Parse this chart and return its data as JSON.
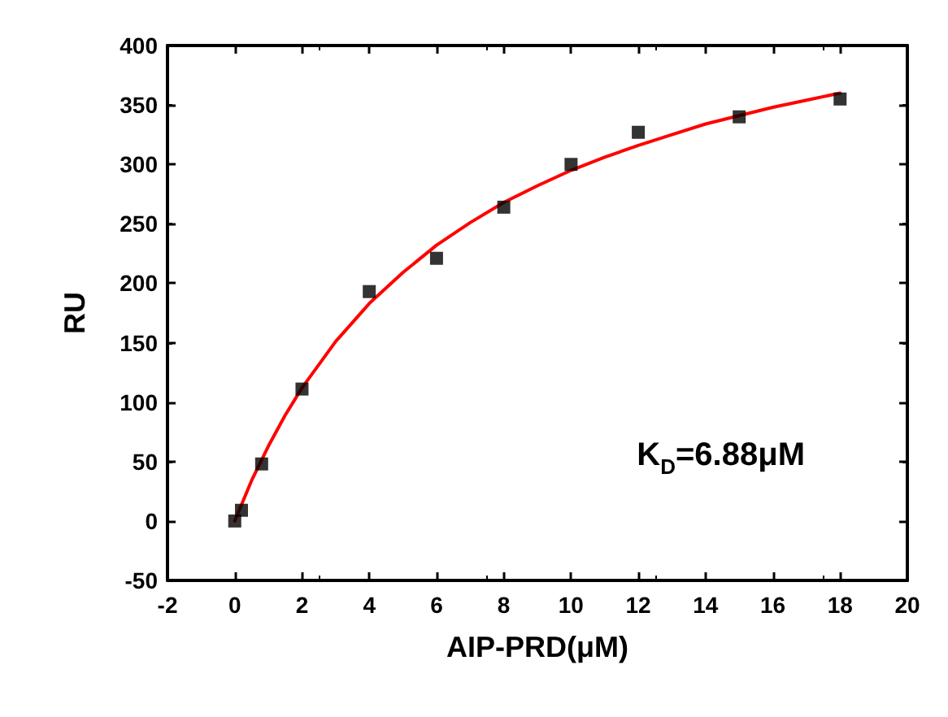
{
  "chart_data": {
    "type": "scatter",
    "xlabel": "AIP-PRD(μM)",
    "ylabel": "RU",
    "xlim": [
      -2,
      20
    ],
    "xticks": [
      -2,
      0,
      2,
      4,
      6,
      8,
      10,
      12,
      14,
      16,
      18,
      20
    ],
    "ylim": [
      -50,
      400
    ],
    "yticks": [
      -50,
      0,
      50,
      100,
      150,
      200,
      250,
      300,
      350,
      400
    ],
    "grid": false,
    "annotations": [
      "K$_{D}$=6.88μM"
    ],
    "series": [
      {
        "marker": "square",
        "color": "#000000",
        "x": [
          0,
          0.2,
          0.8,
          2,
          4,
          6,
          8,
          10,
          12,
          15,
          18
        ],
        "values": [
          0,
          9,
          48,
          111,
          193,
          221,
          264,
          300,
          327,
          340,
          355
        ]
      },
      {
        "type": "line",
        "marker": "none",
        "line_style": "solid",
        "color": "#ff0000",
        "x": [
          0,
          0.25,
          0.5,
          1,
          1.5,
          2,
          3,
          4,
          5,
          6,
          7,
          8,
          9,
          10,
          11,
          12,
          13,
          14,
          15,
          16,
          17,
          18
        ],
        "values": [
          0,
          17,
          34,
          63,
          89,
          112,
          151,
          183,
          209,
          232,
          251,
          268,
          282,
          295,
          306,
          316,
          325,
          334,
          341,
          348,
          354,
          360
        ]
      }
    ]
  }
}
